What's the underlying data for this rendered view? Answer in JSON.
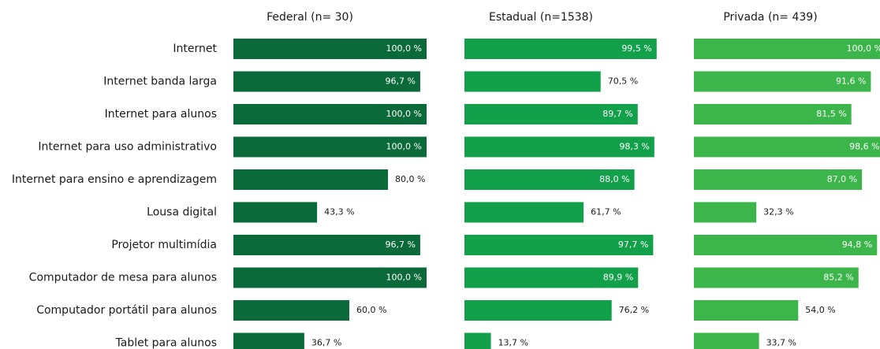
{
  "chart_data": {
    "type": "bar",
    "categories": [
      "Internet",
      "Internet banda larga",
      "Internet para alunos",
      "Internet para uso administrativo",
      "Internet para ensino e aprendizagem",
      "Lousa digital",
      "Projetor multimídia",
      "Computador de mesa para alunos",
      "Computador portátil para alunos",
      "Tablet para alunos"
    ],
    "series": [
      {
        "name": "Federal (n=  30)",
        "color": "#0b6a3a",
        "values": [
          100.0,
          96.7,
          100.0,
          100.0,
          80.0,
          43.3,
          96.7,
          100.0,
          60.0,
          36.7
        ],
        "value_labels": [
          "100,0 %",
          "96,7 %",
          "100,0 %",
          "100,0 %",
          "80,0 %",
          "43,3 %",
          "96,7 %",
          "100,0 %",
          "60,0 %",
          "36,7 %"
        ]
      },
      {
        "name": "Estadual (n=1538)",
        "color": "#13a04b",
        "values": [
          99.5,
          70.5,
          89.7,
          98.3,
          88.0,
          61.7,
          97.7,
          89.9,
          76.2,
          13.7
        ],
        "value_labels": [
          "99,5 %",
          "70,5 %",
          "89,7 %",
          "98,3 %",
          "88,0 %",
          "61,7 %",
          "97,7 %",
          "89,9 %",
          "76,2 %",
          "13,7 %"
        ]
      },
      {
        "name": "Privada (n= 439)",
        "color": "#3cb54a",
        "values": [
          100.0,
          91.6,
          81.5,
          98.6,
          87.0,
          32.3,
          94.8,
          85.2,
          54.0,
          33.7
        ],
        "value_labels": [
          "100,0 %",
          "91,6 %",
          "81,5 %",
          "98,6 %",
          "87,0 %",
          "32,3 %",
          "94,8 %",
          "85,2 %",
          "54,0 %",
          "33,7 %"
        ]
      }
    ]
  }
}
